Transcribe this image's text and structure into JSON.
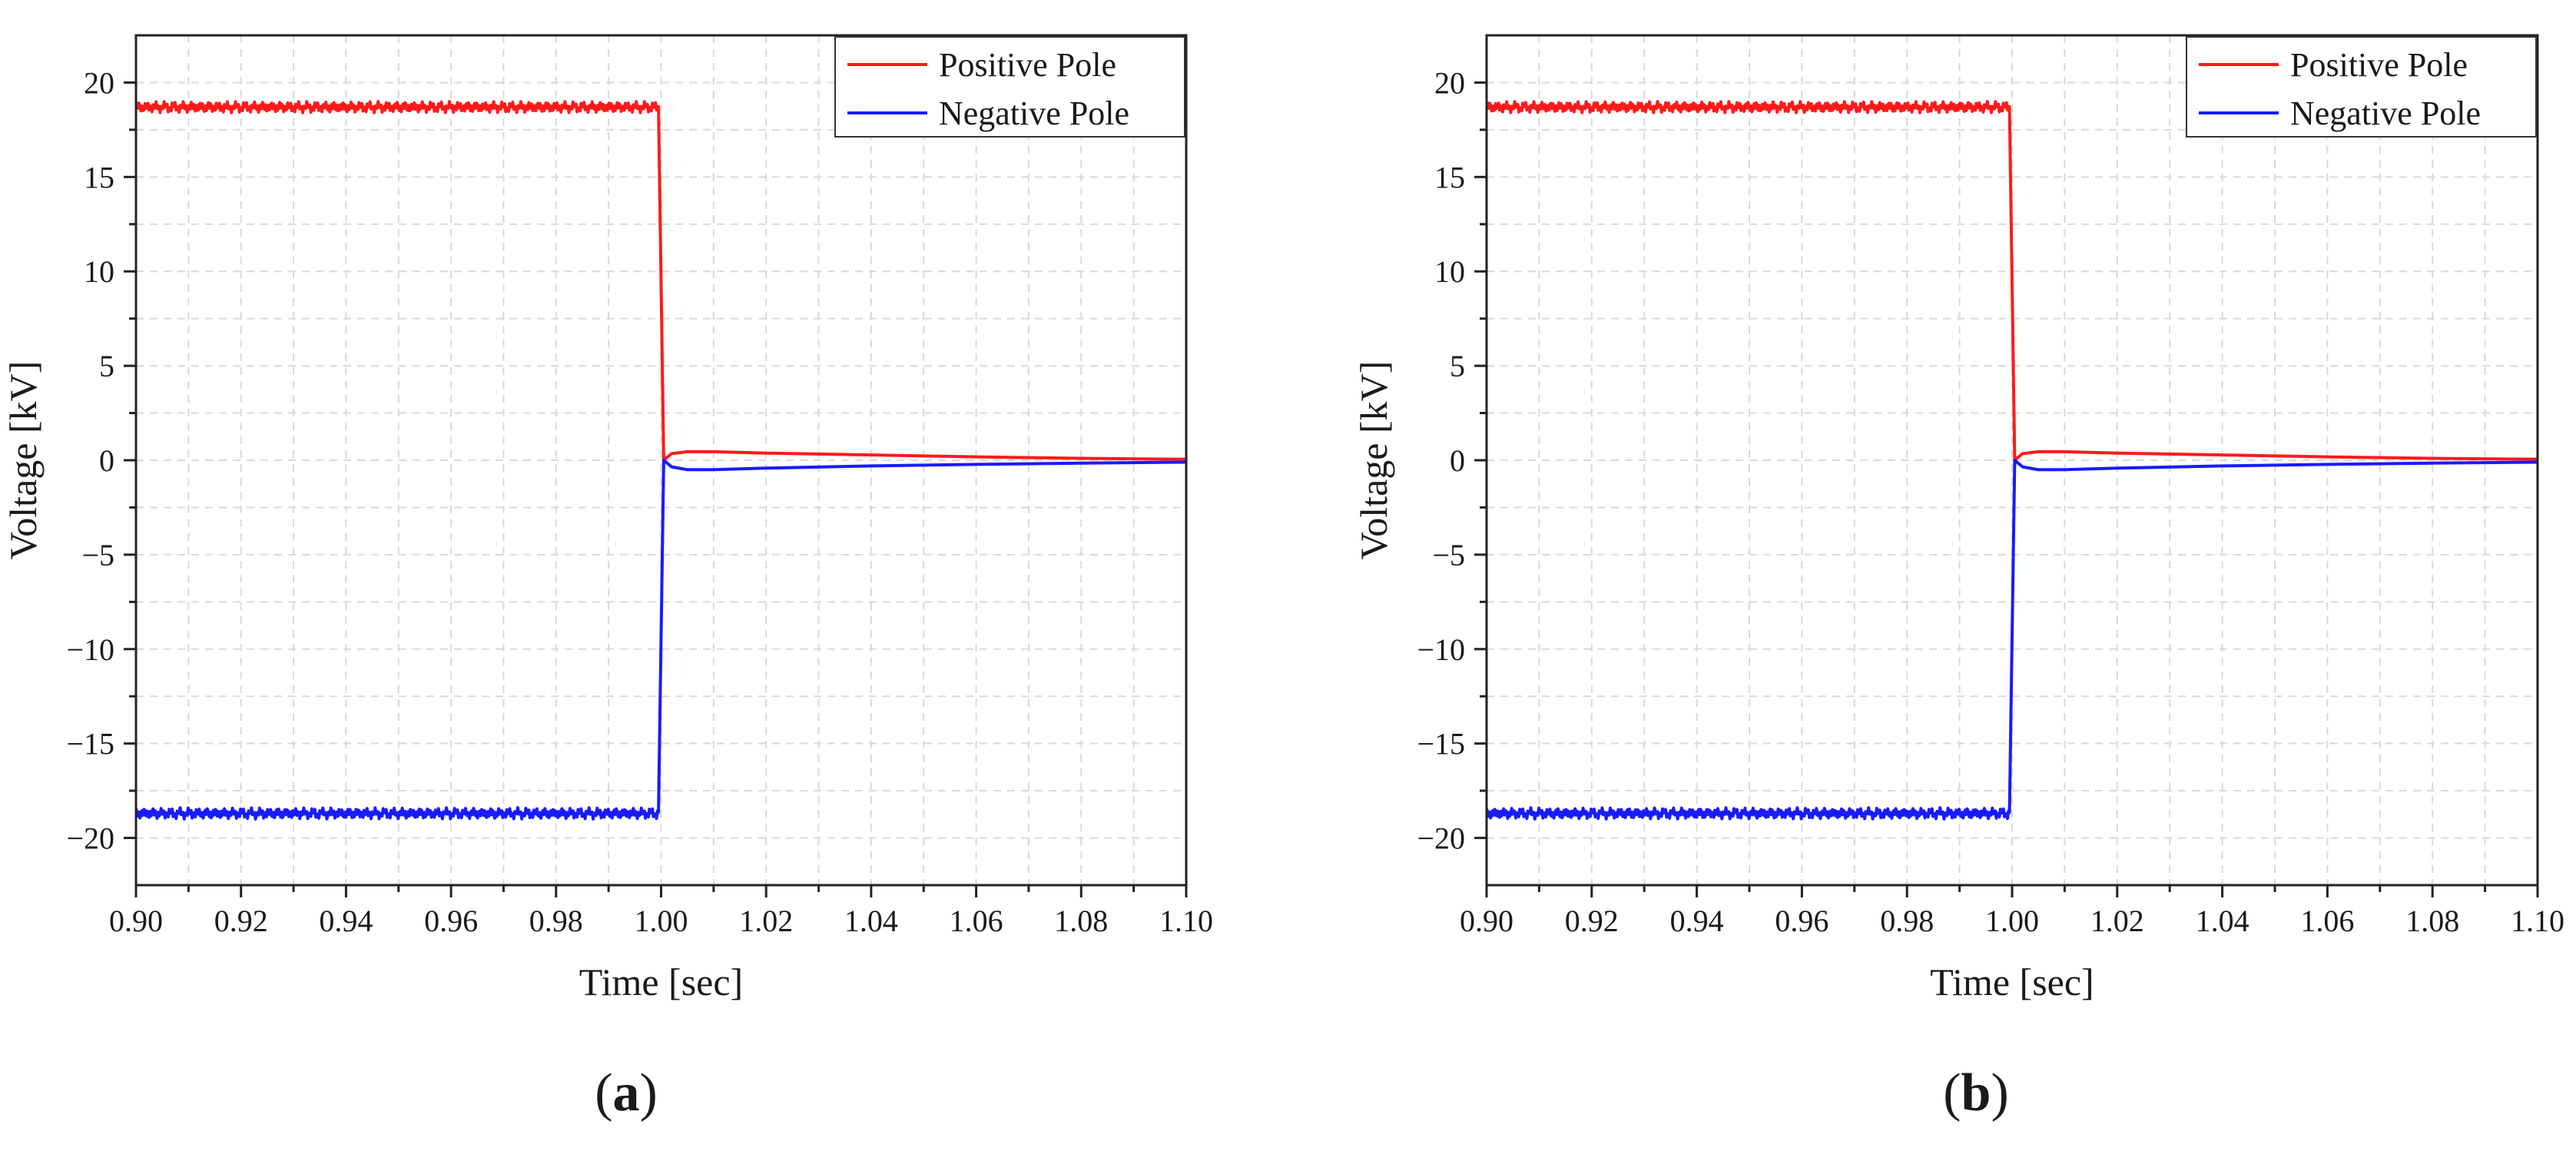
{
  "chart_data": [
    {
      "type": "line",
      "panel_label": "a",
      "xlabel": "Time [sec]",
      "ylabel": "Voltage [kV]",
      "xlim": [
        0.9,
        1.1
      ],
      "ylim": [
        -22.5,
        22.5
      ],
      "xticks": [
        0.9,
        0.92,
        0.94,
        0.96,
        0.98,
        1.0,
        1.02,
        1.04,
        1.06,
        1.08,
        1.1
      ],
      "xtick_labels": [
        "0.90",
        "0.92",
        "0.94",
        "0.96",
        "0.98",
        "1.00",
        "1.02",
        "1.04",
        "1.06",
        "1.08",
        "1.10"
      ],
      "yticks": [
        -20,
        -15,
        -10,
        -5,
        0,
        5,
        10,
        15,
        20
      ],
      "ytick_labels": [
        "−20",
        "−15",
        "−10",
        "−5",
        "0",
        "5",
        "10",
        "15",
        "20"
      ],
      "grid": true,
      "legend_position": "top-right",
      "series": [
        {
          "name": "Positive Pole",
          "color": "#ff1a1a",
          "ripple": 0.3,
          "x": [
            0.9,
            0.9995,
            1.0005,
            1.002,
            1.005,
            1.01,
            1.02,
            1.04,
            1.06,
            1.08,
            1.1
          ],
          "y": [
            18.7,
            18.7,
            0.0,
            0.35,
            0.45,
            0.45,
            0.38,
            0.28,
            0.18,
            0.1,
            0.05
          ]
        },
        {
          "name": "Negative Pole",
          "color": "#1a1aff",
          "ripple": 0.3,
          "x": [
            0.9,
            0.9995,
            1.0005,
            1.002,
            1.005,
            1.01,
            1.02,
            1.04,
            1.06,
            1.08,
            1.1
          ],
          "y": [
            -18.7,
            -18.7,
            0.0,
            -0.35,
            -0.5,
            -0.5,
            -0.42,
            -0.3,
            -0.22,
            -0.15,
            -0.1
          ]
        }
      ]
    },
    {
      "type": "line",
      "panel_label": "b",
      "xlabel": "Time [sec]",
      "ylabel": "Voltage [kV]",
      "xlim": [
        0.9,
        1.1
      ],
      "ylim": [
        -22.5,
        22.5
      ],
      "xticks": [
        0.9,
        0.92,
        0.94,
        0.96,
        0.98,
        1.0,
        1.02,
        1.04,
        1.06,
        1.08,
        1.1
      ],
      "xtick_labels": [
        "0.90",
        "0.92",
        "0.94",
        "0.96",
        "0.98",
        "1.00",
        "1.02",
        "1.04",
        "1.06",
        "1.08",
        "1.10"
      ],
      "yticks": [
        -20,
        -15,
        -10,
        -5,
        0,
        5,
        10,
        15,
        20
      ],
      "ytick_labels": [
        "−20",
        "−15",
        "−10",
        "−5",
        "0",
        "5",
        "10",
        "15",
        "20"
      ],
      "grid": true,
      "legend_position": "top-right",
      "series": [
        {
          "name": "Positive Pole",
          "color": "#ff1a1a",
          "ripple": 0.3,
          "x": [
            0.9,
            0.9995,
            1.0005,
            1.002,
            1.005,
            1.01,
            1.02,
            1.04,
            1.06,
            1.08,
            1.1
          ],
          "y": [
            18.7,
            18.7,
            0.0,
            0.35,
            0.45,
            0.45,
            0.38,
            0.28,
            0.18,
            0.1,
            0.05
          ]
        },
        {
          "name": "Negative Pole",
          "color": "#1a1aff",
          "ripple": 0.3,
          "x": [
            0.9,
            0.9995,
            1.0005,
            1.002,
            1.005,
            1.01,
            1.02,
            1.04,
            1.06,
            1.08,
            1.1
          ],
          "y": [
            -18.7,
            -18.7,
            0.0,
            -0.35,
            -0.5,
            -0.5,
            -0.42,
            -0.3,
            -0.22,
            -0.15,
            -0.1
          ]
        }
      ]
    }
  ]
}
